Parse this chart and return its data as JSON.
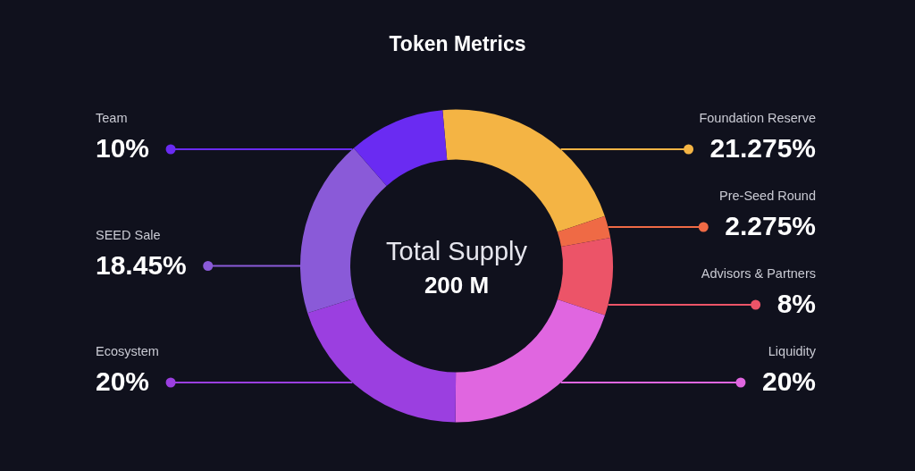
{
  "chart_data": {
    "type": "donut",
    "title": "Token Metrics",
    "categories": [
      "Foundation Reserve",
      "Pre-Seed Round",
      "Advisors & Partners",
      "Liquidity",
      "Ecosystem",
      "SEED Sale",
      "Team"
    ],
    "values": [
      21.275,
      2.275,
      8,
      20,
      20,
      18.45,
      10
    ],
    "value_labels": [
      "21.275%",
      "2.275%",
      "8%",
      "20%",
      "20%",
      "18.45%",
      "10%"
    ],
    "colors": [
      "#f4b444",
      "#ef6a45",
      "#ec5468",
      "#e066e0",
      "#9b3fe0",
      "#8a5ad8",
      "#6a2bf2"
    ],
    "annotations": [
      "Total Supply",
      "200 M"
    ]
  }
}
